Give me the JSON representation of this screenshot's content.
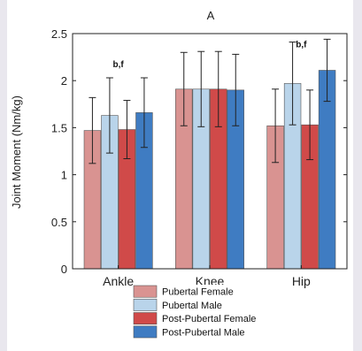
{
  "chart_data": {
    "type": "bar",
    "title": "A",
    "xlabel": "",
    "ylabel": "Joint Moment (Nm/kg)",
    "ylim": [
      0,
      2.5
    ],
    "yticks": [
      0,
      0.5,
      1,
      1.5,
      2,
      2.5
    ],
    "ytick_labels": [
      "0",
      "0.5",
      "1",
      "1.5",
      "2",
      "2.5"
    ],
    "categories": [
      "Ankle",
      "Knee",
      "Hip"
    ],
    "grid": false,
    "legend_position": "bottom",
    "series": [
      {
        "name": "Pubertal Female",
        "color": "#d99391",
        "values": [
          1.47,
          1.91,
          1.52
        ],
        "error": [
          0.35,
          0.39,
          0.39
        ]
      },
      {
        "name": "Pubertal Male",
        "color": "#b9d4ea",
        "values": [
          1.63,
          1.91,
          1.97
        ],
        "error": [
          0.4,
          0.4,
          0.44
        ]
      },
      {
        "name": "Post-Pubertal Female",
        "color": "#d04a49",
        "values": [
          1.48,
          1.91,
          1.53
        ],
        "error": [
          0.31,
          0.4,
          0.37
        ]
      },
      {
        "name": "Post-Pubertal Male",
        "color": "#3f7cc2",
        "values": [
          1.66,
          1.9,
          2.11
        ],
        "error": [
          0.37,
          0.38,
          0.33
        ]
      }
    ],
    "annotations": [
      {
        "text": "b,f",
        "category": "Ankle",
        "y": 2.18
      },
      {
        "text": "b,f",
        "category": "Hip",
        "y": 2.39
      }
    ]
  }
}
